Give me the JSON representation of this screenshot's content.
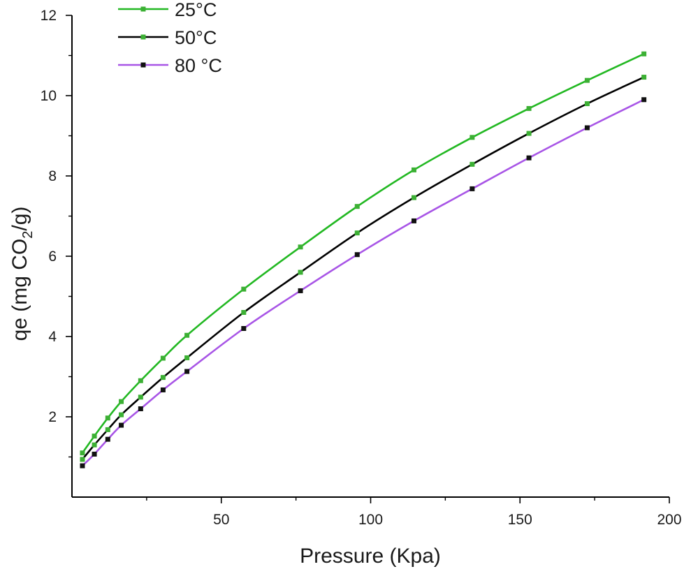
{
  "chart_data": {
    "type": "line",
    "title": "",
    "xlabel": "Pressure (Kpa)",
    "ylabel": {
      "prefix": "qe (mg CO",
      "subscript": "2",
      "suffix": "/g)"
    },
    "xlim": [
      0,
      200
    ],
    "ylim": [
      0,
      12
    ],
    "xticks": [
      50,
      100,
      150,
      200
    ],
    "yticks": [
      2,
      4,
      6,
      8,
      10,
      12
    ],
    "grid": false,
    "legend_position": "top-left",
    "series": [
      {
        "name": "25°C",
        "line_color": "#22b822",
        "marker_color": "#3cb034",
        "marker": "square",
        "x": [
          3.5,
          7.5,
          12,
          16.5,
          23,
          30.5,
          38.5,
          57.5,
          76.5,
          95.5,
          114.5,
          134,
          153,
          172.5,
          191.5
        ],
        "y": [
          1.1,
          1.52,
          1.97,
          2.38,
          2.9,
          3.46,
          4.03,
          5.18,
          6.23,
          7.24,
          8.15,
          8.96,
          9.68,
          10.38,
          11.04
        ]
      },
      {
        "name": "50°C",
        "line_color": "#000000",
        "marker_color": "#3cb034",
        "marker": "square",
        "x": [
          3.5,
          7.5,
          12,
          16.5,
          23,
          30.5,
          38.5,
          57.5,
          76.5,
          95.5,
          114.5,
          134,
          153,
          172.5,
          191.5
        ],
        "y": [
          0.94,
          1.3,
          1.68,
          2.05,
          2.49,
          2.98,
          3.47,
          4.6,
          5.6,
          6.58,
          7.46,
          8.29,
          9.06,
          9.8,
          10.46
        ]
      },
      {
        "name": "80 °C",
        "line_color": "#a855e6",
        "marker_color": "#111111",
        "marker": "square",
        "x": [
          3.5,
          7.5,
          12,
          16.5,
          23,
          30.5,
          38.5,
          57.5,
          76.5,
          95.5,
          114.5,
          134,
          153,
          172.5,
          191.5
        ],
        "y": [
          0.78,
          1.07,
          1.44,
          1.79,
          2.2,
          2.67,
          3.13,
          4.2,
          5.14,
          6.04,
          6.88,
          7.68,
          8.45,
          9.2,
          9.9
        ]
      }
    ]
  }
}
